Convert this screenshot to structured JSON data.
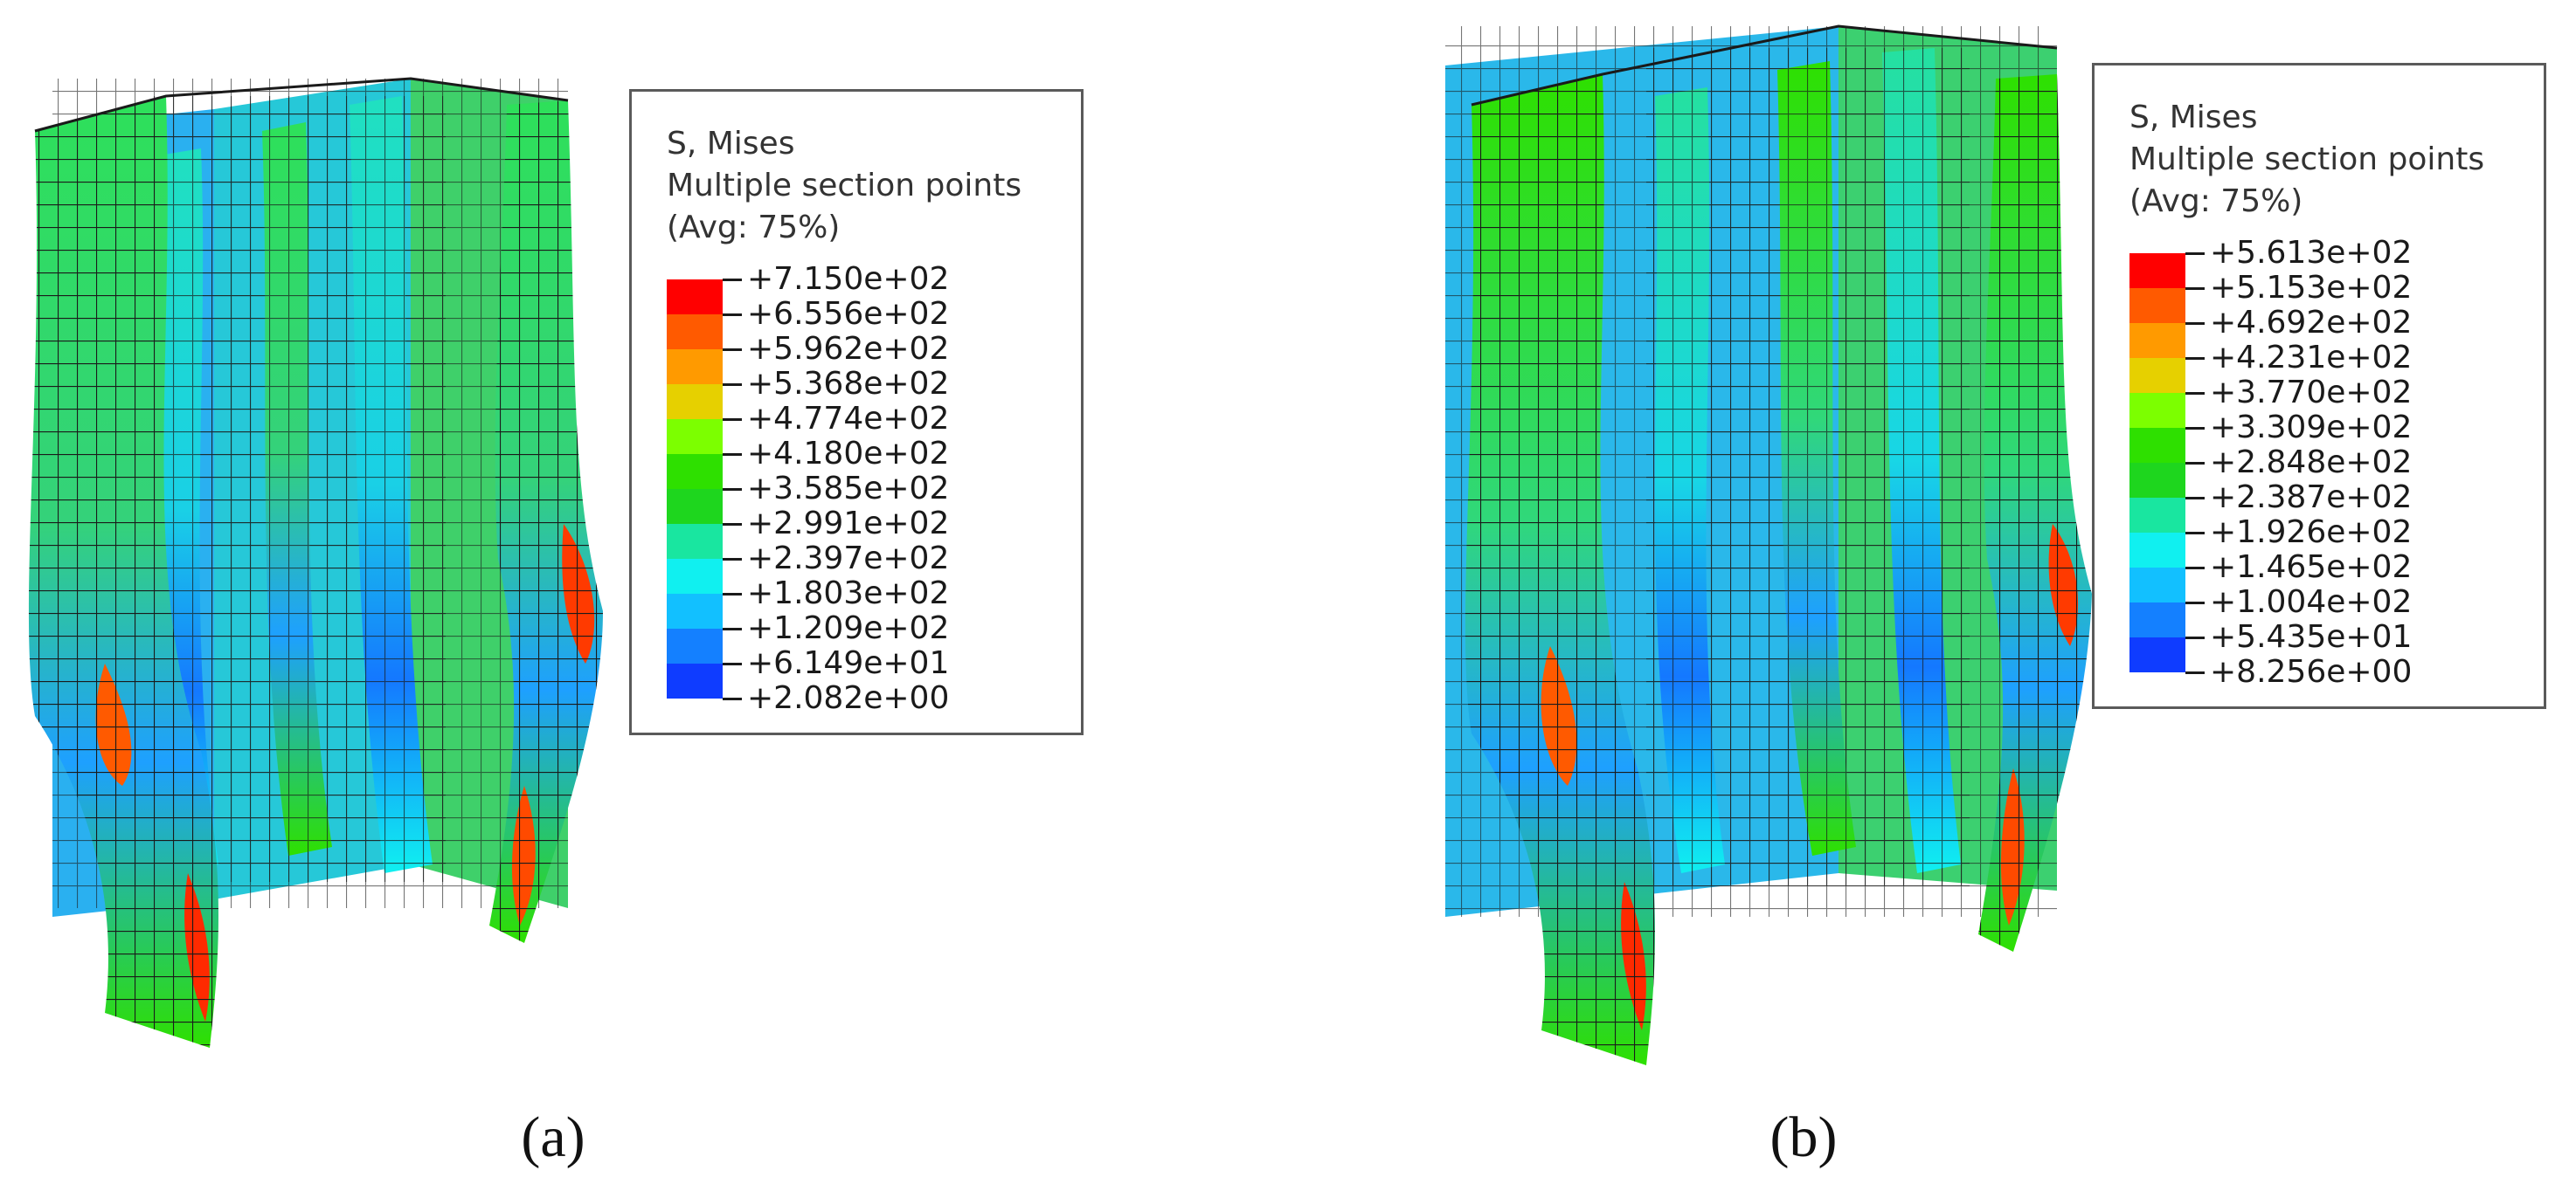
{
  "panels": [
    {
      "caption": "(a)",
      "legend": {
        "title": [
          "S, Mises",
          "Multiple section points",
          "(Avg: 75%)"
        ],
        "values": [
          "+7.150e+02",
          "+6.556e+02",
          "+5.962e+02",
          "+5.368e+02",
          "+4.774e+02",
          "+4.180e+02",
          "+3.585e+02",
          "+2.991e+02",
          "+2.397e+02",
          "+1.803e+02",
          "+1.209e+02",
          "+6.149e+01",
          "+2.082e+00"
        ]
      }
    },
    {
      "caption": "(b)",
      "legend": {
        "title": [
          "S, Mises",
          "Multiple section points",
          "(Avg: 75%)"
        ],
        "values": [
          "+5.613e+02",
          "+5.153e+02",
          "+4.692e+02",
          "+4.231e+02",
          "+3.770e+02",
          "+3.309e+02",
          "+2.848e+02",
          "+2.387e+02",
          "+1.926e+02",
          "+1.465e+02",
          "+1.004e+02",
          "+5.435e+01",
          "+8.256e+00"
        ]
      }
    }
  ],
  "colors": {
    "bands": [
      "#ff0000",
      "#ff5a00",
      "#ff9a00",
      "#e6d000",
      "#7cff00",
      "#2ee000",
      "#1ed61e",
      "#19e6a0",
      "#10f0f0",
      "#12c0ff",
      "#1480ff",
      "#0f3cff"
    ],
    "mesh": "#1a1a1a"
  }
}
